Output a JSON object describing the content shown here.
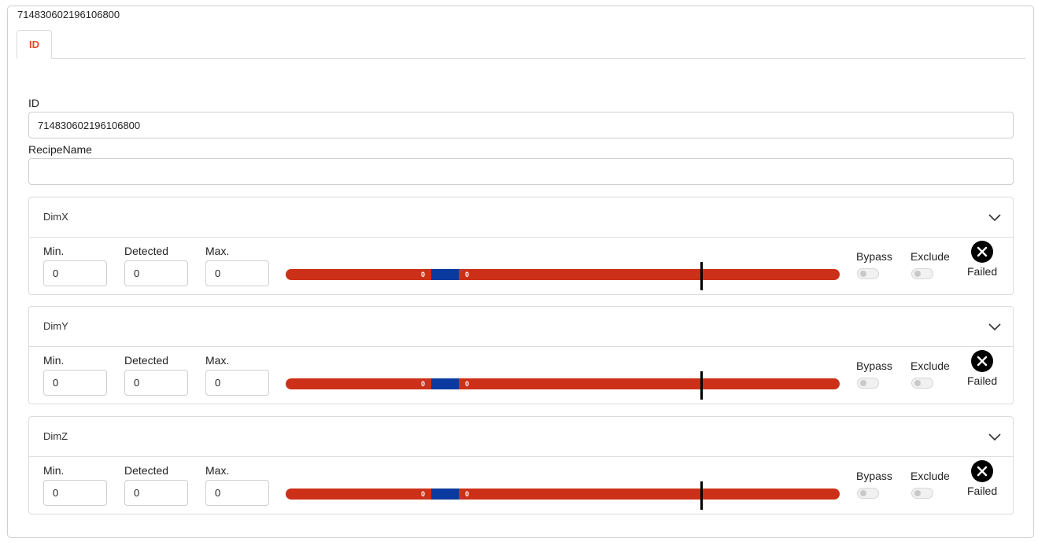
{
  "page": {
    "title": "714830602196106800"
  },
  "tabs": [
    {
      "label": "ID",
      "active": true
    }
  ],
  "form": {
    "id": {
      "label": "ID",
      "value": "714830602196106800"
    },
    "recipe_name": {
      "label": "RecipeName",
      "value": ""
    }
  },
  "dimensions": [
    {
      "title": "DimX",
      "min": {
        "label": "Min.",
        "value": "0"
      },
      "detected": {
        "label": "Detected",
        "value": "0"
      },
      "max": {
        "label": "Max.",
        "value": "0"
      },
      "range": {
        "low_label": "0",
        "high_label": "0"
      },
      "bypass": {
        "label": "Bypass",
        "on": false
      },
      "exclude": {
        "label": "Exclude",
        "on": false
      },
      "status": {
        "label": "Failed",
        "icon": "x-circle-icon"
      }
    },
    {
      "title": "DimY",
      "min": {
        "label": "Min.",
        "value": "0"
      },
      "detected": {
        "label": "Detected",
        "value": "0"
      },
      "max": {
        "label": "Max.",
        "value": "0"
      },
      "range": {
        "low_label": "0",
        "high_label": "0"
      },
      "bypass": {
        "label": "Bypass",
        "on": false
      },
      "exclude": {
        "label": "Exclude",
        "on": false
      },
      "status": {
        "label": "Failed",
        "icon": "x-circle-icon"
      }
    },
    {
      "title": "DimZ",
      "min": {
        "label": "Min.",
        "value": "0"
      },
      "detected": {
        "label": "Detected",
        "value": "0"
      },
      "max": {
        "label": "Max.",
        "value": "0"
      },
      "range": {
        "low_label": "0",
        "high_label": "0"
      },
      "bypass": {
        "label": "Bypass",
        "on": false
      },
      "exclude": {
        "label": "Exclude",
        "on": false
      },
      "status": {
        "label": "Failed",
        "icon": "x-circle-icon"
      }
    }
  ],
  "colors": {
    "accent": "#e8452c",
    "range_out": "#cc3018",
    "range_in": "#0a3aa0",
    "marker": "#000000"
  }
}
